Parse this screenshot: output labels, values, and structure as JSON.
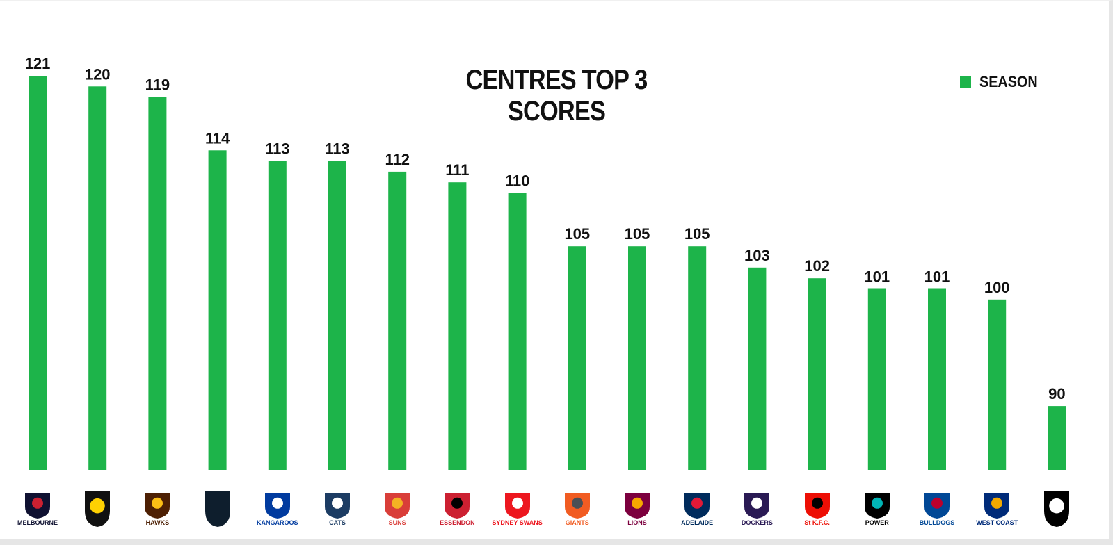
{
  "chart_data": {
    "type": "bar",
    "title": "CENTRES TOP 3 SCORES",
    "xlabel": "",
    "ylabel": "",
    "ylim": [
      0,
      125
    ],
    "grid": false,
    "legend_position": "top-right",
    "categories": [
      "Melbourne",
      "Richmond",
      "Hawthorn",
      "Carlton",
      "North Melbourne",
      "Geelong",
      "Gold Coast",
      "Essendon",
      "Sydney",
      "GWS",
      "Brisbane",
      "Adelaide",
      "Fremantle",
      "St Kilda",
      "Port Adelaide",
      "Western Bulldogs",
      "West Coast",
      "Collingwood"
    ],
    "series": [
      {
        "name": "SEASON",
        "color": "#1db44a",
        "values": [
          121,
          120,
          119,
          114,
          113,
          113,
          112,
          111,
          110,
          105,
          105,
          105,
          103,
          102,
          101,
          101,
          100,
          90
        ]
      }
    ]
  },
  "logos": [
    {
      "icon": "melbourne-logo-icon",
      "text": "MELBOURNE",
      "color": "#0f1131",
      "accent": "#cc2031"
    },
    {
      "icon": "richmond-logo-icon",
      "text": "",
      "color": "#111111",
      "accent": "#fed102"
    },
    {
      "icon": "hawthorn-logo-icon",
      "text": "HAWKS",
      "color": "#4d2004",
      "accent": "#fbbf15"
    },
    {
      "icon": "carlton-logo-icon",
      "text": "",
      "color": "#0e1e2d",
      "accent": "#0e1e2d"
    },
    {
      "icon": "north-melbourne-logo-icon",
      "text": "KANGAROOS",
      "color": "#013b9f",
      "accent": "#ffffff"
    },
    {
      "icon": "geelong-logo-icon",
      "text": "CATS",
      "color": "#1c3c63",
      "accent": "#ffffff"
    },
    {
      "icon": "gold-coast-logo-icon",
      "text": "SUNS",
      "color": "#d93e39",
      "accent": "#f4b223"
    },
    {
      "icon": "essendon-logo-icon",
      "text": "ESSENDON",
      "color": "#cc2031",
      "accent": "#000000"
    },
    {
      "icon": "sydney-logo-icon",
      "text": "SYDNEY SWANS",
      "color": "#ed171f",
      "accent": "#ffffff"
    },
    {
      "icon": "gws-logo-icon",
      "text": "GIANTS",
      "color": "#f15c22",
      "accent": "#4a4f55"
    },
    {
      "icon": "brisbane-logo-icon",
      "text": "LIONS",
      "color": "#7c003e",
      "accent": "#f6a800"
    },
    {
      "icon": "adelaide-logo-icon",
      "text": "ADELAIDE",
      "color": "#002b5c",
      "accent": "#e21937"
    },
    {
      "icon": "fremantle-logo-icon",
      "text": "DOCKERS",
      "color": "#2a1a54",
      "accent": "#ffffff"
    },
    {
      "icon": "st-kilda-logo-icon",
      "text": "St K.F.C.",
      "color": "#ed0f05",
      "accent": "#000000"
    },
    {
      "icon": "port-adelaide-logo-icon",
      "text": "POWER",
      "color": "#000000",
      "accent": "#01b5b6"
    },
    {
      "icon": "western-bulldogs-logo-icon",
      "text": "BULLDOGS",
      "color": "#014896",
      "accent": "#bd002b"
    },
    {
      "icon": "west-coast-logo-icon",
      "text": "WEST COAST",
      "color": "#002b79",
      "accent": "#f2a900"
    },
    {
      "icon": "collingwood-logo-icon",
      "text": "",
      "color": "#000000",
      "accent": "#ffffff"
    }
  ]
}
